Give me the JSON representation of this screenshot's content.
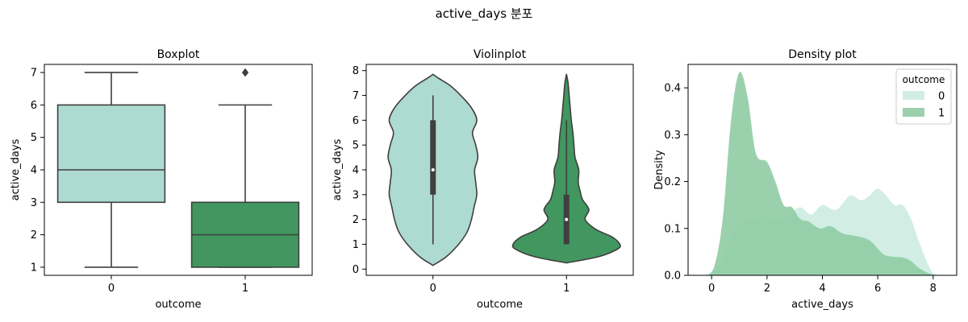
{
  "figure": {
    "suptitle": "active_days 분포"
  },
  "colors": {
    "outcome_0": "#addad1",
    "outcome_1": "#41975f",
    "line": "#3f3f3f",
    "kde_0": "#c7eadd",
    "kde_1": "#8fcca3"
  },
  "chart_data": [
    {
      "type": "box",
      "title": "Boxplot",
      "xlabel": "outcome",
      "ylabel": "active_days",
      "categories": [
        "0",
        "1"
      ],
      "ylim": [
        0.75,
        7.25
      ],
      "yticks": [
        "1",
        "2",
        "3",
        "4",
        "5",
        "6",
        "7"
      ],
      "series": [
        {
          "category": "0",
          "whisker_low": 1,
          "q1": 3,
          "median": 4,
          "q3": 6,
          "whisker_high": 7,
          "outliers": []
        },
        {
          "category": "1",
          "whisker_low": 1,
          "q1": 1,
          "median": 2,
          "q3": 3,
          "whisker_high": 6,
          "outliers": [
            7
          ]
        }
      ],
      "grid": false
    },
    {
      "type": "violin",
      "title": "Violinplot",
      "xlabel": "outcome",
      "ylabel": "active_days",
      "categories": [
        "0",
        "1"
      ],
      "ylim": [
        -0.25,
        8.25
      ],
      "yticks": [
        "0",
        "1",
        "2",
        "3",
        "4",
        "5",
        "6",
        "7",
        "8"
      ],
      "series": [
        {
          "category": "0",
          "q1": 3,
          "median": 4,
          "q3": 6,
          "whisker_low": 1,
          "whisker_high": 7,
          "profile": [
            [
              0.15,
              0.0
            ],
            [
              0.5,
              0.25
            ],
            [
              1.0,
              0.48
            ],
            [
              1.5,
              0.64
            ],
            [
              2.0,
              0.72
            ],
            [
              2.5,
              0.77
            ],
            [
              3.0,
              0.82
            ],
            [
              3.5,
              0.8
            ],
            [
              4.0,
              0.78
            ],
            [
              4.5,
              0.84
            ],
            [
              5.0,
              0.8
            ],
            [
              5.5,
              0.74
            ],
            [
              6.0,
              0.82
            ],
            [
              6.5,
              0.72
            ],
            [
              7.0,
              0.52
            ],
            [
              7.4,
              0.32
            ],
            [
              7.7,
              0.1
            ],
            [
              7.85,
              0.0
            ]
          ]
        },
        {
          "category": "1",
          "q1": 1,
          "median": 2,
          "q3": 3,
          "whisker_low": 1,
          "whisker_high": 6,
          "profile": [
            [
              0.25,
              0.0
            ],
            [
              0.5,
              0.6
            ],
            [
              0.8,
              0.95
            ],
            [
              1.0,
              1.0
            ],
            [
              1.3,
              0.85
            ],
            [
              1.6,
              0.55
            ],
            [
              2.0,
              0.35
            ],
            [
              2.4,
              0.42
            ],
            [
              2.8,
              0.3
            ],
            [
              3.1,
              0.26
            ],
            [
              3.5,
              0.22
            ],
            [
              4.0,
              0.23
            ],
            [
              4.5,
              0.16
            ],
            [
              5.0,
              0.14
            ],
            [
              5.5,
              0.12
            ],
            [
              6.0,
              0.09
            ],
            [
              6.5,
              0.07
            ],
            [
              7.0,
              0.05
            ],
            [
              7.5,
              0.03
            ],
            [
              7.85,
              0.0
            ]
          ]
        }
      ],
      "grid": false
    },
    {
      "type": "area",
      "title": "Density plot",
      "xlabel": "active_days",
      "ylabel": "Density",
      "xlim": [
        -0.85,
        8.85
      ],
      "ylim": [
        0,
        0.45
      ],
      "xticks": [
        "0",
        "2",
        "4",
        "6",
        "8"
      ],
      "yticks": [
        "0.0",
        "0.1",
        "0.2",
        "0.3",
        "0.4"
      ],
      "legend": {
        "title": "outcome",
        "placement": "top-right"
      },
      "series": [
        {
          "name": "0",
          "points": [
            [
              -0.2,
              0.0
            ],
            [
              0.0,
              0.005
            ],
            [
              0.4,
              0.035
            ],
            [
              0.7,
              0.08
            ],
            [
              1.0,
              0.11
            ],
            [
              1.3,
              0.12
            ],
            [
              1.6,
              0.118
            ],
            [
              2.0,
              0.125
            ],
            [
              2.4,
              0.12
            ],
            [
              2.8,
              0.13
            ],
            [
              3.2,
              0.145
            ],
            [
              3.6,
              0.13
            ],
            [
              4.0,
              0.15
            ],
            [
              4.5,
              0.14
            ],
            [
              5.0,
              0.17
            ],
            [
              5.4,
              0.16
            ],
            [
              5.7,
              0.17
            ],
            [
              6.0,
              0.185
            ],
            [
              6.3,
              0.17
            ],
            [
              6.6,
              0.15
            ],
            [
              6.9,
              0.15
            ],
            [
              7.2,
              0.12
            ],
            [
              7.5,
              0.07
            ],
            [
              7.8,
              0.025
            ],
            [
              8.0,
              0.005
            ],
            [
              8.2,
              0.0
            ]
          ]
        },
        {
          "name": "1",
          "points": [
            [
              -0.2,
              0.0
            ],
            [
              0.1,
              0.02
            ],
            [
              0.4,
              0.12
            ],
            [
              0.7,
              0.33
            ],
            [
              1.0,
              0.433
            ],
            [
              1.3,
              0.38
            ],
            [
              1.6,
              0.26
            ],
            [
              2.0,
              0.242
            ],
            [
              2.3,
              0.2
            ],
            [
              2.6,
              0.15
            ],
            [
              2.9,
              0.145
            ],
            [
              3.2,
              0.12
            ],
            [
              3.5,
              0.115
            ],
            [
              3.9,
              0.1
            ],
            [
              4.3,
              0.105
            ],
            [
              4.7,
              0.09
            ],
            [
              5.1,
              0.085
            ],
            [
              5.5,
              0.08
            ],
            [
              5.8,
              0.07
            ],
            [
              6.2,
              0.045
            ],
            [
              6.5,
              0.04
            ],
            [
              6.9,
              0.038
            ],
            [
              7.2,
              0.03
            ],
            [
              7.5,
              0.015
            ],
            [
              7.9,
              0.003
            ],
            [
              8.2,
              0.0
            ]
          ]
        }
      ],
      "grid": false
    }
  ]
}
